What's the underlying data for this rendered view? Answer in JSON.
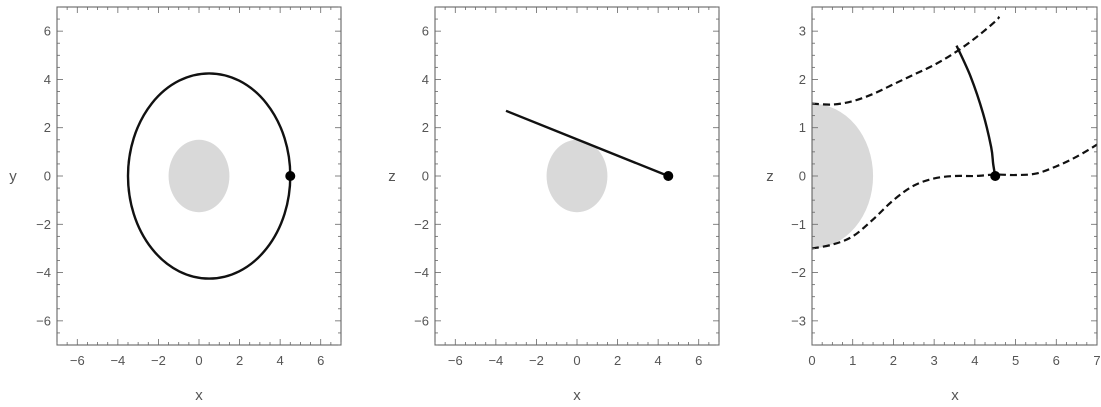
{
  "chart_data": [
    {
      "type": "line",
      "panel": "xy",
      "xlabel": "x",
      "ylabel": "y",
      "xlim": [
        -7,
        7
      ],
      "ylim": [
        -7,
        7
      ],
      "xticks": [
        -6,
        -4,
        -2,
        0,
        2,
        4,
        6
      ],
      "yticks": [
        -6,
        -4,
        -2,
        0,
        2,
        4,
        6
      ],
      "xtick_labels": [
        "−6",
        "−4",
        "−2",
        "0",
        "2",
        "4",
        "6"
      ],
      "ytick_labels": [
        "−6",
        "−4",
        "−2",
        "0",
        "2",
        "4",
        "6"
      ],
      "central_body": {
        "center": [
          0,
          0
        ],
        "rx": 1.5,
        "ry": 1.5
      },
      "orbit": {
        "center": [
          0.5,
          0
        ],
        "rx": 4.0,
        "ry": 4.25
      },
      "marker": [
        4.5,
        0
      ]
    },
    {
      "type": "line",
      "panel": "xz",
      "xlabel": "x",
      "ylabel": "z",
      "xlim": [
        -7,
        7
      ],
      "ylim": [
        -7,
        7
      ],
      "xticks": [
        -6,
        -4,
        -2,
        0,
        2,
        4,
        6
      ],
      "yticks": [
        -6,
        -4,
        -2,
        0,
        2,
        4,
        6
      ],
      "xtick_labels": [
        "−6",
        "−4",
        "−2",
        "0",
        "2",
        "4",
        "6"
      ],
      "ytick_labels": [
        "−6",
        "−4",
        "−2",
        "0",
        "2",
        "4",
        "6"
      ],
      "central_body": {
        "center": [
          0,
          0
        ],
        "rx": 1.5,
        "ry": 1.5
      },
      "trajectory": [
        [
          -3.5,
          2.7
        ],
        [
          4.5,
          0
        ]
      ],
      "marker": [
        4.5,
        0
      ]
    },
    {
      "type": "line",
      "panel": "xz-zoom",
      "xlabel": "x",
      "ylabel": "z",
      "xlim": [
        0,
        7
      ],
      "ylim": [
        -3.5,
        3.5
      ],
      "xticks": [
        0,
        1,
        2,
        3,
        4,
        5,
        6,
        7
      ],
      "yticks": [
        -3,
        -2,
        -1,
        0,
        1,
        2,
        3
      ],
      "xtick_labels": [
        "0",
        "1",
        "2",
        "3",
        "4",
        "5",
        "6",
        "7"
      ],
      "ytick_labels": [
        "−3",
        "−2",
        "−1",
        "0",
        "1",
        "2",
        "3"
      ],
      "central_body": {
        "center": [
          0,
          0
        ],
        "rx": 1.5,
        "ry": 1.5
      },
      "upper_boundary": [
        [
          0,
          1.5
        ],
        [
          0.5,
          1.48
        ],
        [
          1,
          1.55
        ],
        [
          1.5,
          1.7
        ],
        [
          2,
          1.9
        ],
        [
          2.5,
          2.1
        ],
        [
          3,
          2.3
        ],
        [
          3.5,
          2.55
        ],
        [
          4,
          2.85
        ],
        [
          4.5,
          3.2
        ],
        [
          4.6,
          3.3
        ]
      ],
      "lower_boundary": [
        [
          0,
          -1.5
        ],
        [
          0.5,
          -1.42
        ],
        [
          1,
          -1.25
        ],
        [
          1.5,
          -0.9
        ],
        [
          2,
          -0.5
        ],
        [
          2.5,
          -0.2
        ],
        [
          3,
          -0.05
        ],
        [
          3.5,
          0
        ],
        [
          4,
          0
        ],
        [
          4.5,
          0.03
        ],
        [
          5,
          0.02
        ],
        [
          5.5,
          0.05
        ],
        [
          6,
          0.2
        ],
        [
          6.5,
          0.4
        ],
        [
          7,
          0.65
        ]
      ],
      "trajectory": [
        [
          3.55,
          2.7
        ],
        [
          3.9,
          2.05
        ],
        [
          4.2,
          1.3
        ],
        [
          4.4,
          0.6
        ],
        [
          4.45,
          0.25
        ],
        [
          4.5,
          0
        ]
      ],
      "marker": [
        4.5,
        0
      ]
    }
  ]
}
